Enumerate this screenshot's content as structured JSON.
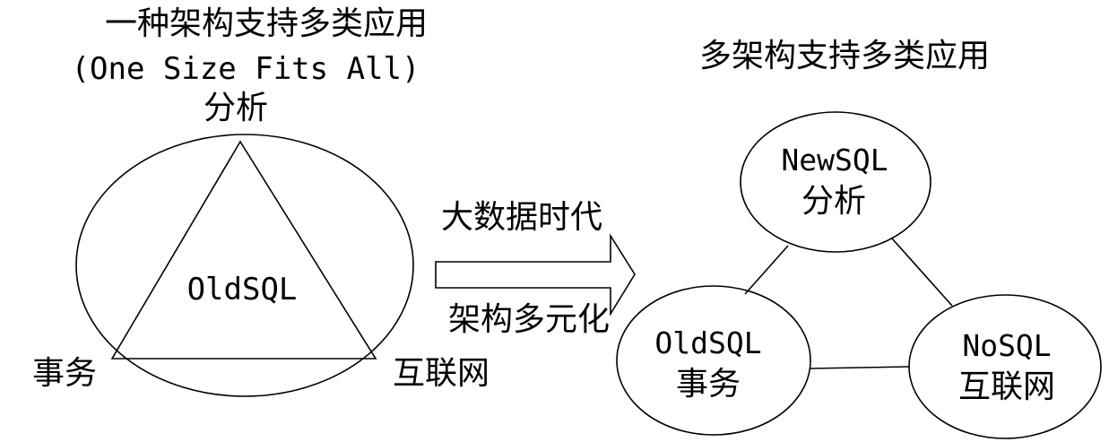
{
  "left_panel": {
    "title": "一种架构支持多类应用",
    "subtitle": "(One Size Fits All)",
    "top_label": "分析",
    "center_label": "OldSQL",
    "left_label": "事务",
    "right_label": "互联网"
  },
  "arrow": {
    "top_text": "大数据时代",
    "bottom_text": "架构多元化"
  },
  "right_panel": {
    "title": "多架构支持多类应用",
    "top_node": {
      "line1": "NewSQL",
      "line2": "分析"
    },
    "left_node": {
      "line1": "OldSQL",
      "line2": "事务"
    },
    "right_node": {
      "line1": "NoSQL",
      "line2": "互联网"
    }
  }
}
